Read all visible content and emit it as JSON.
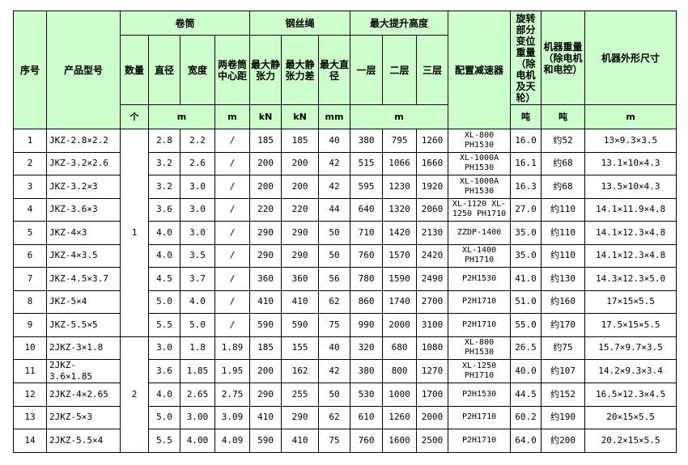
{
  "table": {
    "header": {
      "row1": [
        "序号",
        "产品型号",
        "卷筒",
        "钢丝绳",
        "最大提升高度",
        "配置减速器",
        "旋转部分变位重量（除电机及天轮）",
        "机器重量（除电机和电控）",
        "机器外形尺寸"
      ],
      "row2": [
        "数量",
        "直径",
        "宽度",
        "两卷筒中心距",
        "最大静张力",
        "最大静张力差",
        "最大直径",
        "一层",
        "二层",
        "三层"
      ],
      "units": [
        "个",
        "m",
        "m",
        "kN",
        "kN",
        "mm",
        "m",
        "吨",
        "吨",
        "m"
      ]
    },
    "quantities": [
      "1",
      "2"
    ],
    "rows": [
      [
        "1",
        "JKZ-2.8×2.2",
        "2.8",
        "2.2",
        "/",
        "185",
        "185",
        "40",
        "380",
        "795",
        "1260",
        "XL-800 PH1530",
        "16.0",
        "约52",
        "13×9.3×3.5"
      ],
      [
        "2",
        "JKZ-3.2×2.6",
        "3.2",
        "2.6",
        "/",
        "200",
        "200",
        "42",
        "515",
        "1066",
        "1660",
        "XL-1000A PH1530",
        "16.1",
        "约68",
        "13.1×10×4.3"
      ],
      [
        "3",
        "JKZ-3.2×3",
        "3.2",
        "3.0",
        "/",
        "200",
        "200",
        "42",
        "595",
        "1230",
        "1920",
        "XL-1000A PH1530",
        "16.3",
        "约68",
        "13.5×10×4.3"
      ],
      [
        "4",
        "JKZ-3.6×3",
        "3.6",
        "3.0",
        "/",
        "220",
        "220",
        "44",
        "640",
        "1320",
        "2060",
        "XL-1120 XL-1250 PH1710",
        "27.0",
        "约110",
        "14.1×11.9×4.8"
      ],
      [
        "5",
        "JKZ-4×3",
        "4.0",
        "3.0",
        "/",
        "290",
        "290",
        "50",
        "710",
        "1420",
        "2130",
        "ZZDP-1400",
        "35.0",
        "约110",
        "14.1×12.3×4.8"
      ],
      [
        "6",
        "JKZ-4×3.5",
        "4.0",
        "3.5",
        "/",
        "290",
        "290",
        "50",
        "760",
        "1570",
        "2420",
        "XL-1400 PH1710",
        "35.0",
        "约110",
        "14.1×12.3×4.8"
      ],
      [
        "7",
        "JKZ-4.5×3.7",
        "4.5",
        "3.7",
        "/",
        "360",
        "360",
        "56",
        "780",
        "1590",
        "2490",
        "P2H1530",
        "41.0",
        "约130",
        "14.3×12.3×5.0"
      ],
      [
        "8",
        "JKZ-5×4",
        "5.0",
        "4.0",
        "/",
        "410",
        "410",
        "62",
        "860",
        "1740",
        "2700",
        "P2H1710",
        "51.0",
        "约160",
        "17×15×5.5"
      ],
      [
        "9",
        "JKZ-5.5×5",
        "5.5",
        "5.0",
        "/",
        "590",
        "590",
        "75",
        "990",
        "2000",
        "3100",
        "P2H1710",
        "55.0",
        "约170",
        "17.5×15×5.5"
      ],
      [
        "10",
        "2JKZ-3×1.8",
        "3.0",
        "1.8",
        "1.89",
        "185",
        "155",
        "40",
        "320",
        "680",
        "1080",
        "XL-800 PH1530",
        "26.5",
        "约75",
        "15.7×9.7×3.5"
      ],
      [
        "11",
        "2JKZ-3.6×1.85",
        "3.6",
        "1.85",
        "1.95",
        "200",
        "162",
        "42",
        "380",
        "800",
        "1270",
        "XL-1250 PH1710",
        "40.0",
        "约107",
        "14.2×9.3×3.4"
      ],
      [
        "12",
        "2JKZ-4×2.65",
        "4.0",
        "2.65",
        "2.75",
        "290",
        "255",
        "50",
        "530",
        "1000",
        "1700",
        "P2H1530",
        "44.5",
        "约152",
        "16.5×12.3×4.5"
      ],
      [
        "13",
        "2JKZ-5×3",
        "5.0",
        "3.00",
        "3.09",
        "410",
        "290",
        "62",
        "610",
        "1260",
        "2000",
        "P2H1710",
        "60.2",
        "约190",
        "20×15×5.5"
      ],
      [
        "14",
        "2JKZ-5.5×4",
        "5.5",
        "4.00",
        "4.09",
        "590",
        "410",
        "75",
        "760",
        "1600",
        "2500",
        "P2H1710",
        "64.0",
        "约200",
        "20.2×15×5.5"
      ]
    ]
  }
}
